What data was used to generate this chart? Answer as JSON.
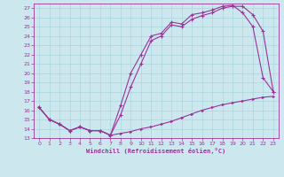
{
  "xlabel": "Windchill (Refroidissement éolien,°C)",
  "bg_color": "#cce8ee",
  "grid_color": "#aad4dd",
  "line_color": "#993399",
  "xlim": [
    -0.5,
    23.5
  ],
  "ylim": [
    13,
    27.5
  ],
  "xticks": [
    0,
    1,
    2,
    3,
    4,
    5,
    6,
    7,
    8,
    9,
    10,
    11,
    12,
    13,
    14,
    15,
    16,
    17,
    18,
    19,
    20,
    21,
    22,
    23
  ],
  "yticks": [
    13,
    14,
    15,
    16,
    17,
    18,
    19,
    20,
    21,
    22,
    23,
    24,
    25,
    26,
    27
  ],
  "line1_x": [
    0,
    1,
    2,
    3,
    4,
    5,
    6,
    7,
    8,
    9,
    10,
    11,
    12,
    13,
    14,
    15,
    16,
    17,
    18,
    19,
    20,
    21,
    22,
    23
  ],
  "line1_y": [
    16.3,
    15.0,
    14.5,
    13.8,
    14.2,
    13.8,
    13.8,
    13.3,
    13.5,
    13.7,
    14.0,
    14.2,
    14.5,
    14.8,
    15.2,
    15.6,
    16.0,
    16.3,
    16.6,
    16.8,
    17.0,
    17.2,
    17.4,
    17.5
  ],
  "line2_x": [
    0,
    1,
    2,
    3,
    4,
    5,
    6,
    7,
    8,
    9,
    10,
    11,
    12,
    13,
    14,
    15,
    16,
    17,
    18,
    19,
    20,
    21,
    22,
    23
  ],
  "line2_y": [
    16.3,
    15.0,
    14.5,
    13.8,
    14.2,
    13.8,
    13.8,
    13.3,
    16.5,
    20.0,
    22.0,
    24.0,
    24.3,
    25.5,
    25.3,
    26.3,
    26.5,
    26.8,
    27.2,
    27.3,
    26.5,
    25.0,
    19.5,
    18.0
  ],
  "line3_x": [
    0,
    1,
    2,
    3,
    4,
    5,
    6,
    7,
    8,
    9,
    10,
    11,
    12,
    13,
    14,
    15,
    16,
    17,
    18,
    19,
    20,
    21,
    22,
    23
  ],
  "line3_y": [
    16.3,
    15.0,
    14.5,
    13.8,
    14.2,
    13.8,
    13.8,
    13.3,
    15.5,
    18.5,
    21.0,
    23.5,
    24.0,
    25.2,
    25.0,
    25.8,
    26.2,
    26.5,
    27.0,
    27.2,
    27.2,
    26.3,
    24.5,
    18.0
  ]
}
